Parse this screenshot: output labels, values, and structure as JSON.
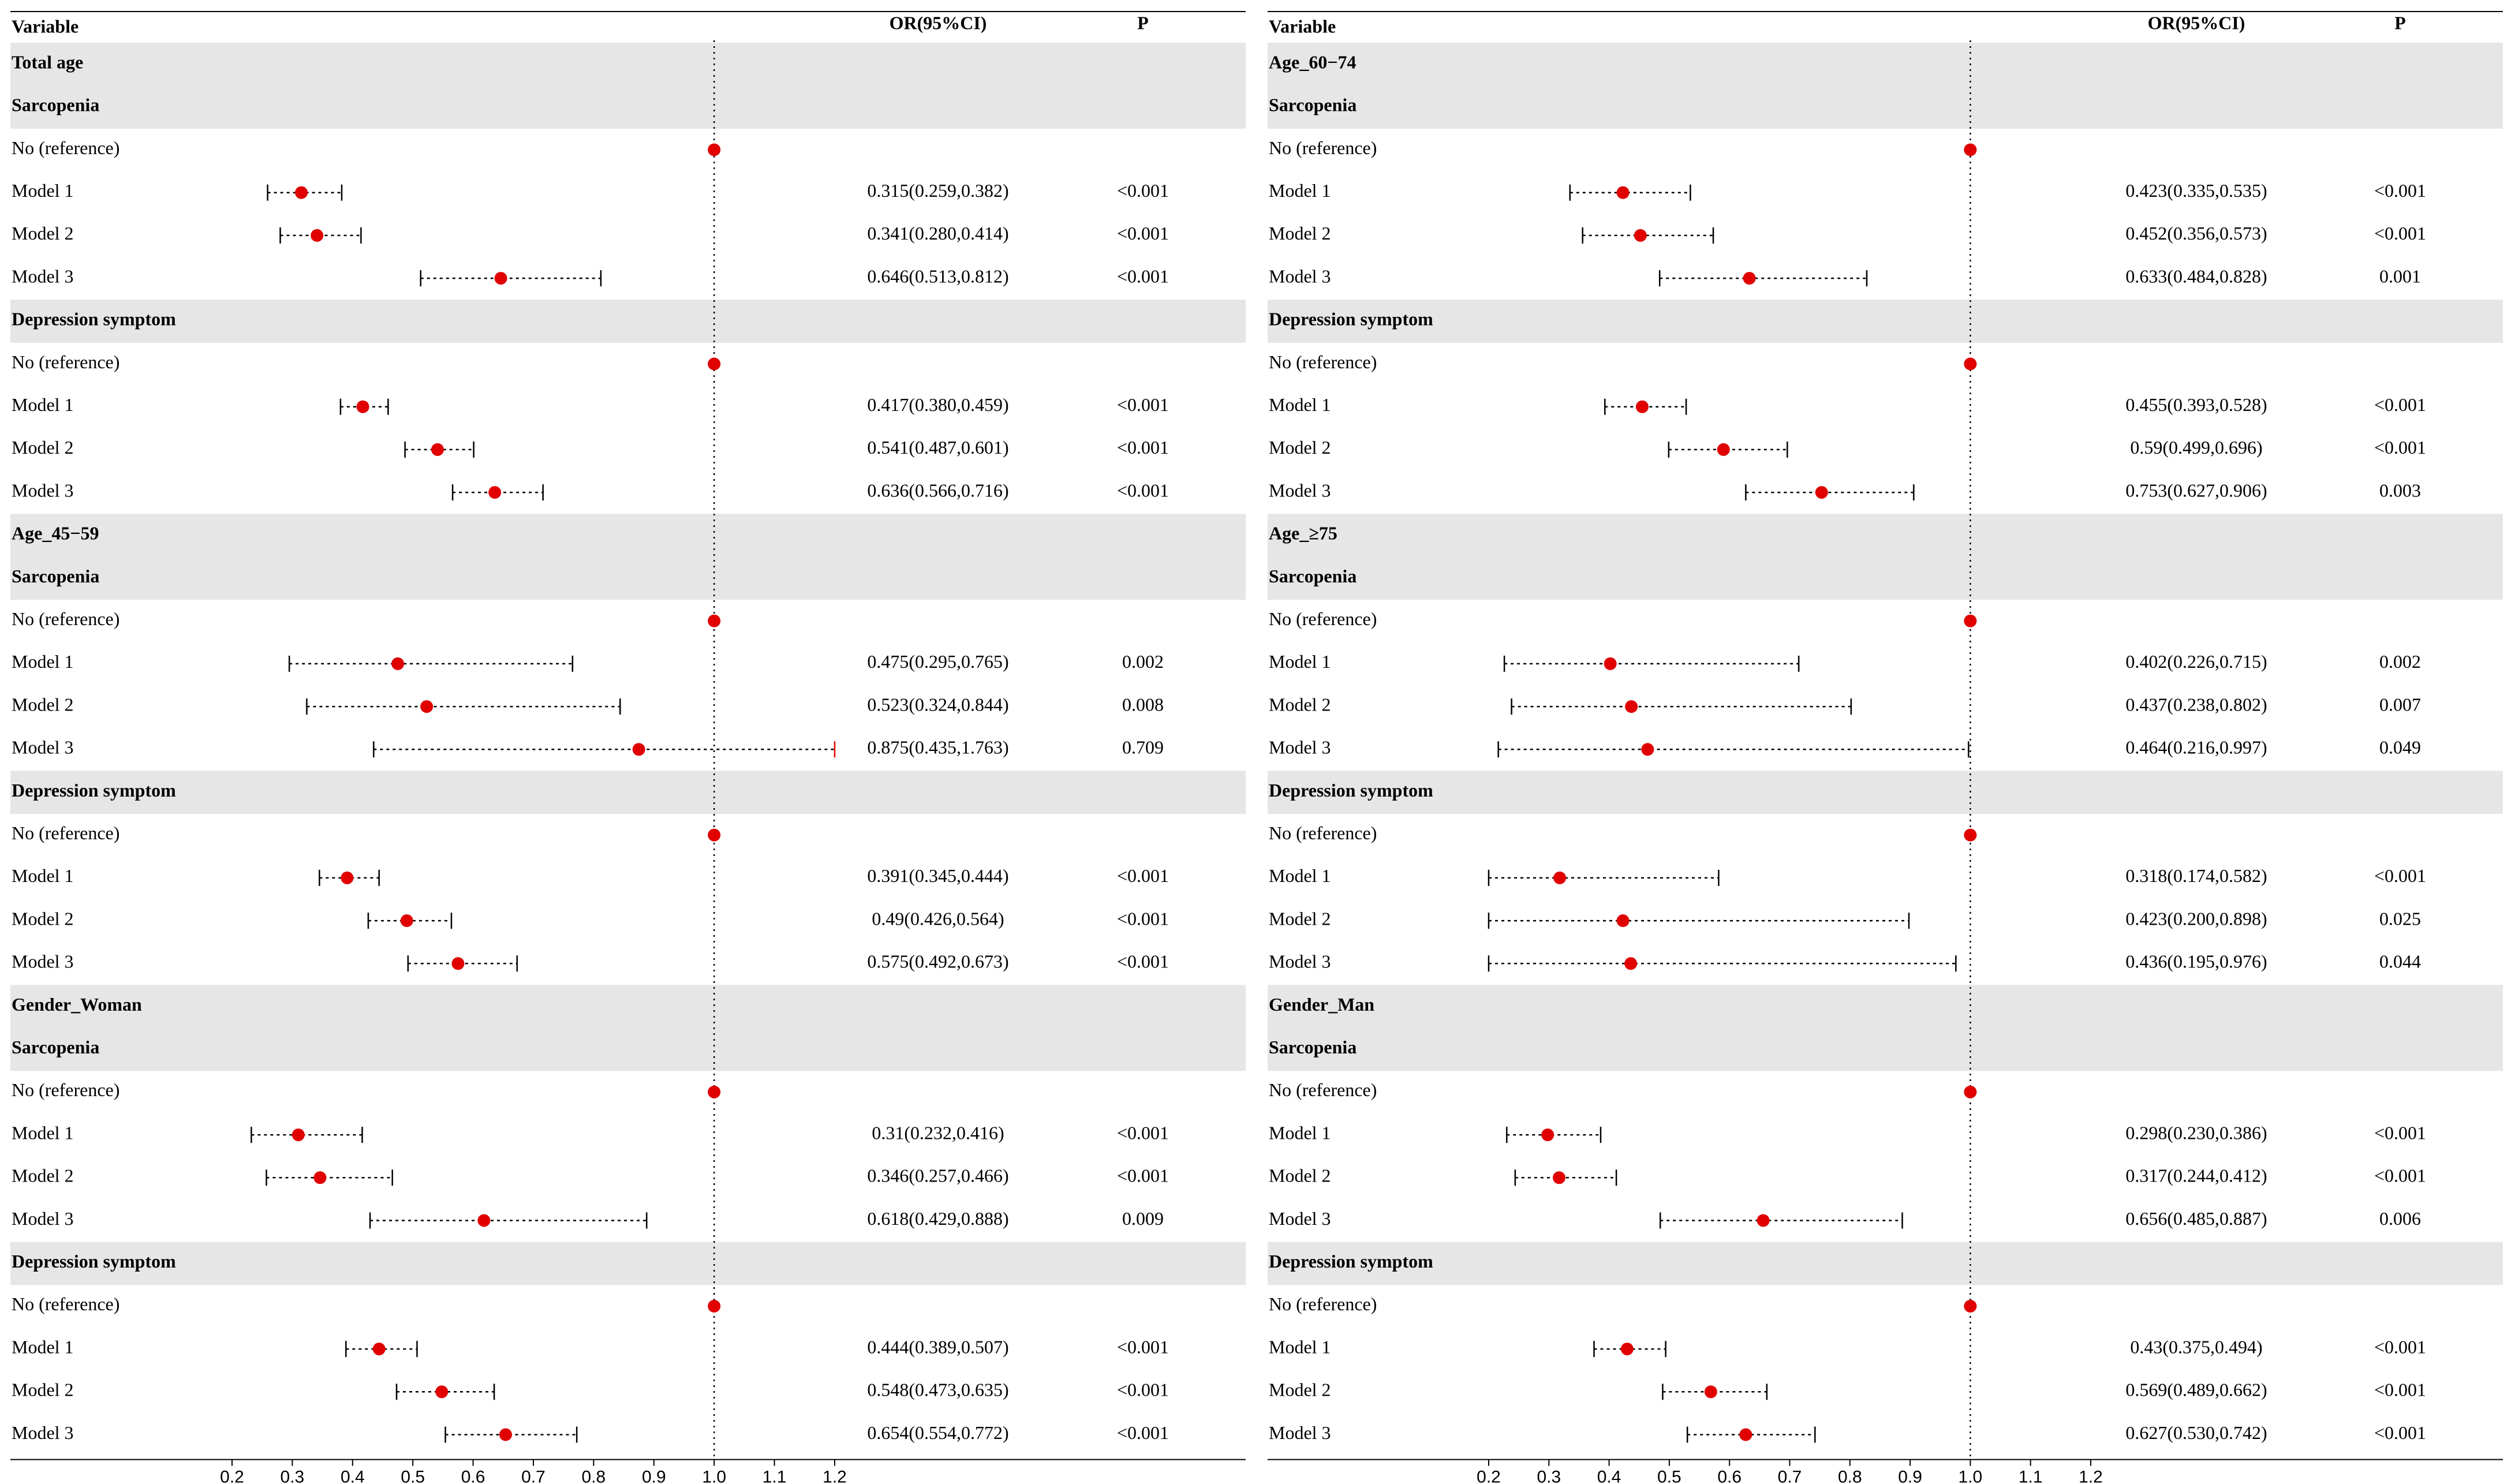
{
  "chart_data": [
    {
      "type": "forest",
      "headers": {
        "variable": "Variable",
        "or": "OR(95%CI)",
        "p": "P"
      },
      "reference_line": 1.0,
      "xlim": [
        0.2,
        1.2
      ],
      "ticks": [
        "0.2",
        "0.3",
        "0.4",
        "0.5",
        "0.6",
        "0.7",
        "0.8",
        "0.9",
        "1.0",
        "1.1",
        "1.2"
      ],
      "colors": {
        "point": "#e00000",
        "whisker": "#000000",
        "group_bg": "#e6e6e6",
        "clipped_whisker": "#e00000"
      },
      "rows": [
        {
          "kind": "group",
          "label": "Total age"
        },
        {
          "kind": "group",
          "label": "Sarcopenia"
        },
        {
          "kind": "ref",
          "label": "No (reference)",
          "est": 1.0
        },
        {
          "kind": "model",
          "label": "Model 1",
          "est": 0.315,
          "lo": 0.259,
          "hi": 0.382,
          "or": "0.315(0.259,0.382)",
          "p": "<0.001"
        },
        {
          "kind": "model",
          "label": "Model 2",
          "est": 0.341,
          "lo": 0.28,
          "hi": 0.414,
          "or": "0.341(0.280,0.414)",
          "p": "<0.001"
        },
        {
          "kind": "model",
          "label": "Model 3",
          "est": 0.646,
          "lo": 0.513,
          "hi": 0.812,
          "or": "0.646(0.513,0.812)",
          "p": "<0.001"
        },
        {
          "kind": "group",
          "label": "Depression symptom"
        },
        {
          "kind": "ref",
          "label": "No (reference)",
          "est": 1.0
        },
        {
          "kind": "model",
          "label": "Model 1",
          "est": 0.417,
          "lo": 0.38,
          "hi": 0.459,
          "or": "0.417(0.380,0.459)",
          "p": "<0.001"
        },
        {
          "kind": "model",
          "label": "Model 2",
          "est": 0.541,
          "lo": 0.487,
          "hi": 0.601,
          "or": "0.541(0.487,0.601)",
          "p": "<0.001"
        },
        {
          "kind": "model",
          "label": "Model 3",
          "est": 0.636,
          "lo": 0.566,
          "hi": 0.716,
          "or": "0.636(0.566,0.716)",
          "p": "<0.001"
        },
        {
          "kind": "group",
          "label": "Age_45−59"
        },
        {
          "kind": "group",
          "label": "Sarcopenia"
        },
        {
          "kind": "ref",
          "label": "No (reference)",
          "est": 1.0
        },
        {
          "kind": "model",
          "label": "Model 1",
          "est": 0.475,
          "lo": 0.295,
          "hi": 0.765,
          "or": "0.475(0.295,0.765)",
          "p": "0.002"
        },
        {
          "kind": "model",
          "label": "Model 2",
          "est": 0.523,
          "lo": 0.324,
          "hi": 0.844,
          "or": "0.523(0.324,0.844)",
          "p": "0.008"
        },
        {
          "kind": "model",
          "label": "Model 3",
          "est": 0.875,
          "lo": 0.435,
          "hi": 1.763,
          "or": "0.875(0.435,1.763)",
          "p": "0.709"
        },
        {
          "kind": "group",
          "label": "Depression symptom"
        },
        {
          "kind": "ref",
          "label": "No (reference)",
          "est": 1.0
        },
        {
          "kind": "model",
          "label": "Model 1",
          "est": 0.391,
          "lo": 0.345,
          "hi": 0.444,
          "or": "0.391(0.345,0.444)",
          "p": "<0.001"
        },
        {
          "kind": "model",
          "label": "Model 2",
          "est": 0.49,
          "lo": 0.426,
          "hi": 0.564,
          "or": "0.49(0.426,0.564)",
          "p": "<0.001"
        },
        {
          "kind": "model",
          "label": "Model 3",
          "est": 0.575,
          "lo": 0.492,
          "hi": 0.673,
          "or": "0.575(0.492,0.673)",
          "p": "<0.001"
        },
        {
          "kind": "group",
          "label": "Gender_Woman"
        },
        {
          "kind": "group",
          "label": "Sarcopenia"
        },
        {
          "kind": "ref",
          "label": "No (reference)",
          "est": 1.0
        },
        {
          "kind": "model",
          "label": "Model 1",
          "est": 0.31,
          "lo": 0.232,
          "hi": 0.416,
          "or": "0.31(0.232,0.416)",
          "p": "<0.001"
        },
        {
          "kind": "model",
          "label": "Model 2",
          "est": 0.346,
          "lo": 0.257,
          "hi": 0.466,
          "or": "0.346(0.257,0.466)",
          "p": "<0.001"
        },
        {
          "kind": "model",
          "label": "Model 3",
          "est": 0.618,
          "lo": 0.429,
          "hi": 0.888,
          "or": "0.618(0.429,0.888)",
          "p": "0.009"
        },
        {
          "kind": "group",
          "label": "Depression symptom"
        },
        {
          "kind": "ref",
          "label": "No (reference)",
          "est": 1.0
        },
        {
          "kind": "model",
          "label": "Model 1",
          "est": 0.444,
          "lo": 0.389,
          "hi": 0.507,
          "or": "0.444(0.389,0.507)",
          "p": "<0.001"
        },
        {
          "kind": "model",
          "label": "Model 2",
          "est": 0.548,
          "lo": 0.473,
          "hi": 0.635,
          "or": "0.548(0.473,0.635)",
          "p": "<0.001"
        },
        {
          "kind": "model",
          "label": "Model 3",
          "est": 0.654,
          "lo": 0.554,
          "hi": 0.772,
          "or": "0.654(0.554,0.772)",
          "p": "<0.001"
        }
      ]
    },
    {
      "type": "forest",
      "headers": {
        "variable": "Variable",
        "or": "OR(95%CI)",
        "p": "P"
      },
      "reference_line": 1.0,
      "xlim": [
        0.2,
        1.2
      ],
      "ticks": [
        "0.2",
        "0.3",
        "0.4",
        "0.5",
        "0.6",
        "0.7",
        "0.8",
        "0.9",
        "1.0",
        "1.1",
        "1.2"
      ],
      "colors": {
        "point": "#e00000",
        "whisker": "#000000",
        "group_bg": "#e6e6e6",
        "clipped_whisker": "#e00000"
      },
      "rows": [
        {
          "kind": "group",
          "label": "Age_60−74"
        },
        {
          "kind": "group",
          "label": "Sarcopenia"
        },
        {
          "kind": "ref",
          "label": "No (reference)",
          "est": 1.0
        },
        {
          "kind": "model",
          "label": "Model 1",
          "est": 0.423,
          "lo": 0.335,
          "hi": 0.535,
          "or": "0.423(0.335,0.535)",
          "p": "<0.001"
        },
        {
          "kind": "model",
          "label": "Model 2",
          "est": 0.452,
          "lo": 0.356,
          "hi": 0.573,
          "or": "0.452(0.356,0.573)",
          "p": "<0.001"
        },
        {
          "kind": "model",
          "label": "Model 3",
          "est": 0.633,
          "lo": 0.484,
          "hi": 0.828,
          "or": "0.633(0.484,0.828)",
          "p": "0.001"
        },
        {
          "kind": "group",
          "label": "Depression symptom"
        },
        {
          "kind": "ref",
          "label": "No (reference)",
          "est": 1.0
        },
        {
          "kind": "model",
          "label": "Model 1",
          "est": 0.455,
          "lo": 0.393,
          "hi": 0.528,
          "or": "0.455(0.393,0.528)",
          "p": "<0.001"
        },
        {
          "kind": "model",
          "label": "Model 2",
          "est": 0.59,
          "lo": 0.499,
          "hi": 0.696,
          "or": "0.59(0.499,0.696)",
          "p": "<0.001"
        },
        {
          "kind": "model",
          "label": "Model 3",
          "est": 0.753,
          "lo": 0.627,
          "hi": 0.906,
          "or": "0.753(0.627,0.906)",
          "p": "0.003"
        },
        {
          "kind": "group",
          "label": "Age_≥75"
        },
        {
          "kind": "group",
          "label": "Sarcopenia"
        },
        {
          "kind": "ref",
          "label": "No (reference)",
          "est": 1.0
        },
        {
          "kind": "model",
          "label": "Model 1",
          "est": 0.402,
          "lo": 0.226,
          "hi": 0.715,
          "or": "0.402(0.226,0.715)",
          "p": "0.002"
        },
        {
          "kind": "model",
          "label": "Model 2",
          "est": 0.437,
          "lo": 0.238,
          "hi": 0.802,
          "or": "0.437(0.238,0.802)",
          "p": "0.007"
        },
        {
          "kind": "model",
          "label": "Model 3",
          "est": 0.464,
          "lo": 0.216,
          "hi": 0.997,
          "or": "0.464(0.216,0.997)",
          "p": "0.049"
        },
        {
          "kind": "group",
          "label": "Depression symptom"
        },
        {
          "kind": "ref",
          "label": "No (reference)",
          "est": 1.0
        },
        {
          "kind": "model",
          "label": "Model 1",
          "est": 0.318,
          "lo": 0.174,
          "hi": 0.582,
          "or": "0.318(0.174,0.582)",
          "p": "<0.001"
        },
        {
          "kind": "model",
          "label": "Model 2",
          "est": 0.423,
          "lo": 0.2,
          "hi": 0.898,
          "or": "0.423(0.200,0.898)",
          "p": "0.025"
        },
        {
          "kind": "model",
          "label": "Model 3",
          "est": 0.436,
          "lo": 0.195,
          "hi": 0.976,
          "or": "0.436(0.195,0.976)",
          "p": "0.044"
        },
        {
          "kind": "group",
          "label": "Gender_Man"
        },
        {
          "kind": "group",
          "label": "Sarcopenia"
        },
        {
          "kind": "ref",
          "label": "No (reference)",
          "est": 1.0
        },
        {
          "kind": "model",
          "label": "Model 1",
          "est": 0.298,
          "lo": 0.23,
          "hi": 0.386,
          "or": "0.298(0.230,0.386)",
          "p": "<0.001"
        },
        {
          "kind": "model",
          "label": "Model 2",
          "est": 0.317,
          "lo": 0.244,
          "hi": 0.412,
          "or": "0.317(0.244,0.412)",
          "p": "<0.001"
        },
        {
          "kind": "model",
          "label": "Model 3",
          "est": 0.656,
          "lo": 0.485,
          "hi": 0.887,
          "or": "0.656(0.485,0.887)",
          "p": "0.006"
        },
        {
          "kind": "group",
          "label": "Depression symptom"
        },
        {
          "kind": "ref",
          "label": "No (reference)",
          "est": 1.0
        },
        {
          "kind": "model",
          "label": "Model 1",
          "est": 0.43,
          "lo": 0.375,
          "hi": 0.494,
          "or": "0.43(0.375,0.494)",
          "p": "<0.001"
        },
        {
          "kind": "model",
          "label": "Model 2",
          "est": 0.569,
          "lo": 0.489,
          "hi": 0.662,
          "or": "0.569(0.489,0.662)",
          "p": "<0.001"
        },
        {
          "kind": "model",
          "label": "Model 3",
          "est": 0.627,
          "lo": 0.53,
          "hi": 0.742,
          "or": "0.627(0.530,0.742)",
          "p": "<0.001"
        }
      ]
    }
  ]
}
